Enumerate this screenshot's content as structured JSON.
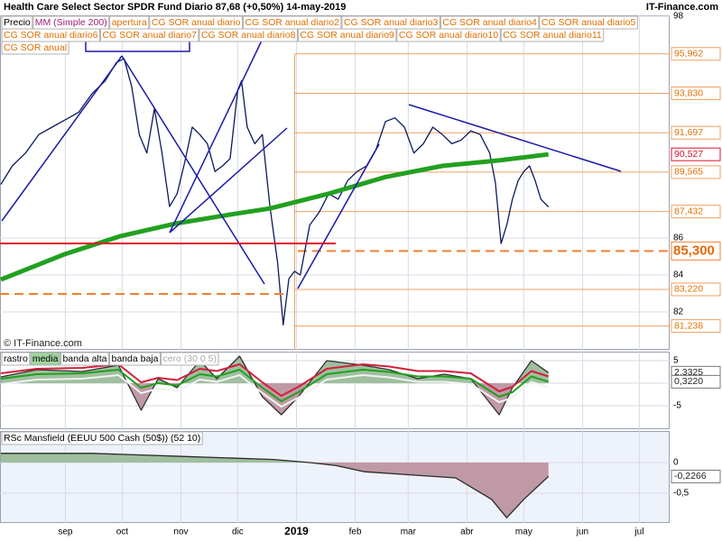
{
  "header": {
    "title": "Health Care Select Sector SPDR Fund   Diario   87,68 (+0,50%)   14-may-2019",
    "site": "IT-Finance.com",
    "watermark": "© IT-Finance.com"
  },
  "chart_data": [
    {
      "type": "line",
      "legend_extra": [
        "apertura",
        "CG SOR anual diario",
        "CG SOR anual diario2",
        "CG SOR anual diario3",
        "CG SOR anual diario4",
        "CG SOR anual diario5",
        "CG SOR anual diario6",
        "CG SOR anual diario7",
        "CG SOR anual diario8",
        "CG SOR anual diario9",
        "CG SOR anual diario10",
        "CG SOR anual diario11",
        "CG SOR anual"
      ],
      "xlim": [
        -3.5,
        350
      ],
      "xticks": [
        {
          "value": 31,
          "label": "sep"
        },
        {
          "value": 61,
          "label": "oct"
        },
        {
          "value": 92,
          "label": "nov"
        },
        {
          "value": 122,
          "label": "dic"
        },
        {
          "value": 153,
          "label": "2019"
        },
        {
          "value": 184,
          "label": "feb"
        },
        {
          "value": 212,
          "label": "mar"
        },
        {
          "value": 243,
          "label": "abr"
        },
        {
          "value": 273,
          "label": "may"
        },
        {
          "value": 304,
          "label": "jun"
        },
        {
          "value": 334,
          "label": "jul"
        }
      ],
      "ylim": [
        80.73,
        98.0
      ],
      "yticks": [
        82,
        84,
        86,
        98
      ],
      "series": [
        {
          "name": "Precio",
          "color": "#0b1a5e",
          "x": [
            -3,
            3,
            10,
            17,
            24,
            31,
            38,
            45,
            52,
            58,
            62,
            66,
            70,
            74,
            78,
            82,
            86,
            90,
            94,
            98,
            102,
            106,
            110,
            114,
            118,
            122,
            124,
            127,
            131,
            135,
            139,
            143,
            146,
            149,
            152,
            155,
            160,
            165,
            170,
            175,
            180,
            185,
            190,
            195,
            200,
            205,
            210,
            215,
            220,
            225,
            230,
            235,
            240,
            245,
            250,
            255,
            258,
            261,
            264,
            267,
            270,
            273,
            276,
            279,
            282,
            286
          ],
          "values": [
            88.9,
            89.9,
            90.6,
            91.6,
            92.0,
            92.4,
            92.8,
            93.8,
            94.5,
            95.5,
            95.7,
            94.2,
            91.6,
            90.6,
            93.0,
            90.6,
            87.7,
            88.4,
            90.1,
            92.0,
            91.6,
            91.1,
            89.6,
            89.9,
            90.3,
            94.0,
            94.5,
            92.0,
            91.1,
            91.6,
            87.7,
            84.7,
            81.3,
            83.8,
            84.2,
            84.0,
            86.7,
            87.4,
            88.4,
            88.1,
            89.1,
            89.6,
            89.9,
            90.8,
            92.3,
            92.5,
            92.0,
            90.6,
            91.1,
            92.0,
            91.6,
            91.1,
            91.3,
            91.8,
            91.6,
            90.6,
            89.0,
            85.7,
            86.7,
            88.1,
            89.1,
            89.6,
            89.9,
            89.1,
            88.1,
            87.68
          ]
        },
        {
          "name": "MM (Simple 200)",
          "color": "#22a020",
          "x": [
            -3,
            30,
            60,
            90,
            120,
            139,
            170,
            200,
            230,
            260,
            286
          ],
          "values": [
            83.75,
            85.1,
            86.1,
            86.8,
            87.3,
            87.6,
            88.4,
            89.3,
            89.9,
            90.2,
            90.527
          ],
          "last_label": "90,527"
        }
      ],
      "levels": [
        {
          "value": 95.962,
          "label": "95,962"
        },
        {
          "value": 93.83,
          "label": "93,830"
        },
        {
          "value": 91.697,
          "label": "91,697"
        },
        {
          "value": 89.565,
          "label": "89,565"
        },
        {
          "value": 87.432,
          "label": "87,432"
        },
        {
          "value": 83.22,
          "label": "83,220"
        },
        {
          "value": 81.238,
          "label": "81,238"
        }
      ],
      "key_level": {
        "value": 85.3,
        "label": "85,300"
      }
    },
    {
      "type": "area",
      "xlim": [
        -3.5,
        350
      ],
      "ylim": [
        -10.2,
        7
      ],
      "yticks": [
        5,
        0,
        -5
      ],
      "legend_extra": [
        "cero (30 0 5)"
      ],
      "series": [
        {
          "name": "rastro",
          "color": "#303030",
          "x": [
            -3,
            16,
            40,
            59,
            71,
            80,
            90,
            102,
            111,
            123,
            135,
            145,
            154,
            169,
            188,
            202,
            217,
            231,
            245,
            260,
            267,
            277,
            286
          ],
          "values": [
            1.4,
            3,
            2.6,
            4,
            -6,
            1,
            -1,
            5,
            1,
            6,
            -3,
            -7,
            -3,
            5,
            4,
            3,
            1,
            2,
            1,
            -7,
            -1,
            5,
            2.3325
          ],
          "last_label": "2,3325"
        },
        {
          "name": "media",
          "color": "#1fa01f",
          "x": [
            -3,
            16,
            40,
            59,
            71,
            80,
            90,
            102,
            111,
            123,
            135,
            145,
            154,
            169,
            188,
            202,
            217,
            231,
            245,
            260,
            267,
            277,
            286
          ],
          "values": [
            1,
            2,
            2.2,
            3,
            -1,
            0,
            -0.5,
            2,
            1.5,
            3,
            -1,
            -4,
            -2,
            2,
            3,
            2.5,
            1.5,
            1.5,
            1,
            -3,
            -2,
            1.5,
            0.322
          ],
          "last_label": "0,3220"
        },
        {
          "name": "banda alta",
          "color": "#d0203a",
          "x": [
            -3,
            16,
            40,
            59,
            71,
            80,
            90,
            102,
            111,
            123,
            135,
            145,
            154,
            169,
            188,
            202,
            217,
            231,
            245,
            260,
            267,
            277,
            286
          ],
          "values": [
            2.2,
            3.2,
            3.4,
            4.2,
            0.2,
            1.2,
            0.7,
            3.2,
            2.7,
            4.2,
            0.2,
            -2.8,
            -0.8,
            3.2,
            4.2,
            3.7,
            2.7,
            2.7,
            2.2,
            -1.8,
            -0.8,
            2.7,
            1.5
          ]
        },
        {
          "name": "banda baja",
          "color": "#f2f2f2",
          "x": [
            -3,
            16,
            40,
            59,
            71,
            80,
            90,
            102,
            111,
            123,
            135,
            145,
            154,
            169,
            188,
            202,
            217,
            231,
            245,
            260,
            267,
            277,
            286
          ],
          "values": [
            -0.2,
            0.8,
            1,
            1.8,
            -2.2,
            -1.2,
            -1.7,
            0.8,
            0.3,
            1.8,
            -2.2,
            -5.2,
            -3.2,
            0.8,
            1.8,
            1.3,
            0.3,
            0.3,
            -0.2,
            -4.2,
            -3.2,
            0.3,
            -0.9
          ]
        }
      ]
    },
    {
      "type": "area",
      "xlim": [
        -3.5,
        350
      ],
      "ylim": [
        -0.985,
        0.515
      ],
      "yticks": [
        0,
        {
          "value": -0.5,
          "label": "-0,5"
        }
      ],
      "series": [
        {
          "name": "RSc Mansfield (EEUU 500 Cash (50$)) (52 10)",
          "color": "#2a2a2a",
          "x": [
            -3,
            45,
            93,
            141,
            160,
            174,
            189,
            213,
            237,
            256,
            264,
            273,
            286
          ],
          "values": [
            0.15,
            0.15,
            0.1,
            0.05,
            0,
            -0.05,
            -0.15,
            -0.2,
            -0.25,
            -0.6,
            -0.9,
            -0.6,
            -0.2266
          ],
          "last_label": "-0,2266"
        }
      ]
    }
  ]
}
